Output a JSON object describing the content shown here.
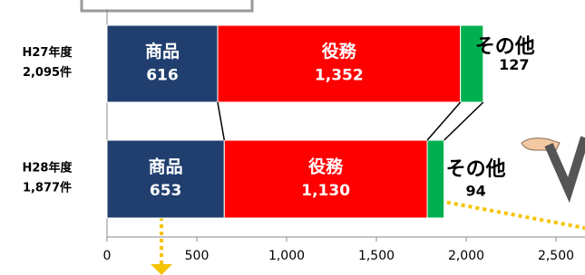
{
  "chart_data": {
    "type": "stacked-barh",
    "categories": [
      "H27年度",
      "H28年度"
    ],
    "category_counts": [
      "2,095件",
      "1,877件"
    ],
    "series": [
      {
        "name": "商品",
        "color": "#203f6f",
        "values": [
          616,
          653
        ],
        "value_labels": [
          "616",
          "653"
        ]
      },
      {
        "name": "役務",
        "color": "#ff0000",
        "values": [
          1352,
          1130
        ],
        "value_labels": [
          "1,352",
          "1,130"
        ]
      },
      {
        "name": "その他",
        "color": "#00b050",
        "values": [
          127,
          94
        ],
        "value_labels": [
          "127",
          "94"
        ]
      }
    ],
    "xlim": [
      0,
      2500
    ],
    "xticks": [
      0,
      500,
      {
        "value": 1000,
        "label": "1,000"
      },
      {
        "value": 1500,
        "label": "1,500"
      },
      {
        "value": 2000,
        "label": "2,000"
      },
      {
        "value": 2500,
        "label": "2,500"
      }
    ]
  }
}
